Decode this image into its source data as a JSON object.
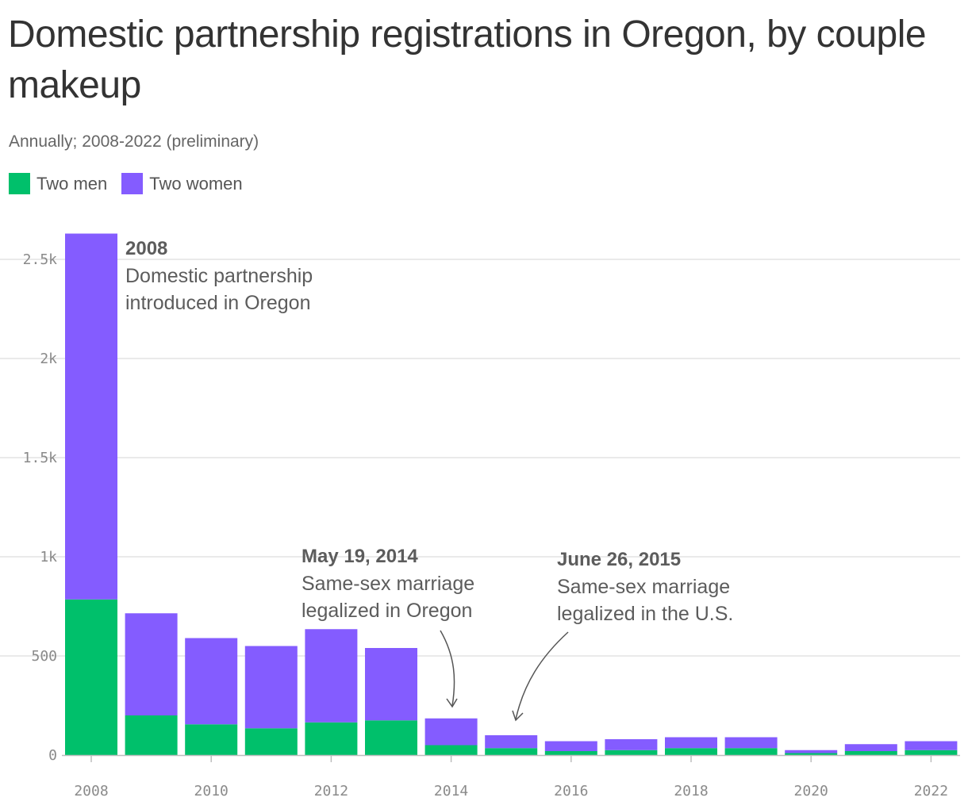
{
  "title": "Domestic partnership registrations in Oregon, by couple makeup",
  "subtitle": "Annually; 2008-2022 (preliminary)",
  "legend": [
    {
      "label": "Two men",
      "color": "#00c06b"
    },
    {
      "label": "Two women",
      "color": "#845cff"
    }
  ],
  "chart_data": {
    "type": "bar",
    "stacked": true,
    "categories": [
      2008,
      2009,
      2010,
      2011,
      2012,
      2013,
      2014,
      2015,
      2016,
      2017,
      2018,
      2019,
      2020,
      2021,
      2022
    ],
    "series": [
      {
        "name": "Two men",
        "color": "#00c06b",
        "values": [
          785,
          200,
          155,
          135,
          165,
          175,
          50,
          35,
          20,
          25,
          35,
          35,
          10,
          20,
          25
        ]
      },
      {
        "name": "Two women",
        "color": "#845cff",
        "values": [
          1845,
          515,
          435,
          415,
          470,
          365,
          135,
          65,
          50,
          55,
          55,
          55,
          15,
          35,
          45
        ]
      }
    ],
    "ylim": [
      0,
      2640
    ],
    "yticks": [
      0,
      500,
      1000,
      1500,
      2000,
      2500
    ],
    "ytick_labels": [
      "0",
      "500",
      "1k",
      "1.5k",
      "2k",
      "2.5k"
    ],
    "xticks": [
      2008,
      2010,
      2012,
      2014,
      2016,
      2018,
      2020,
      2022
    ],
    "grid": true,
    "legend_position": "top-left",
    "annotations": [
      {
        "date": "2008",
        "lines": [
          "Domestic partnership",
          "introduced in Oregon"
        ]
      },
      {
        "date": "May 19, 2014",
        "lines": [
          "Same-sex marriage",
          "legalized in Oregon"
        ],
        "arrow_to": 2014
      },
      {
        "date": "June 26, 2015",
        "lines": [
          "Same-sex marriage",
          "legalized in the U.S."
        ],
        "arrow_to": 2015
      }
    ]
  }
}
